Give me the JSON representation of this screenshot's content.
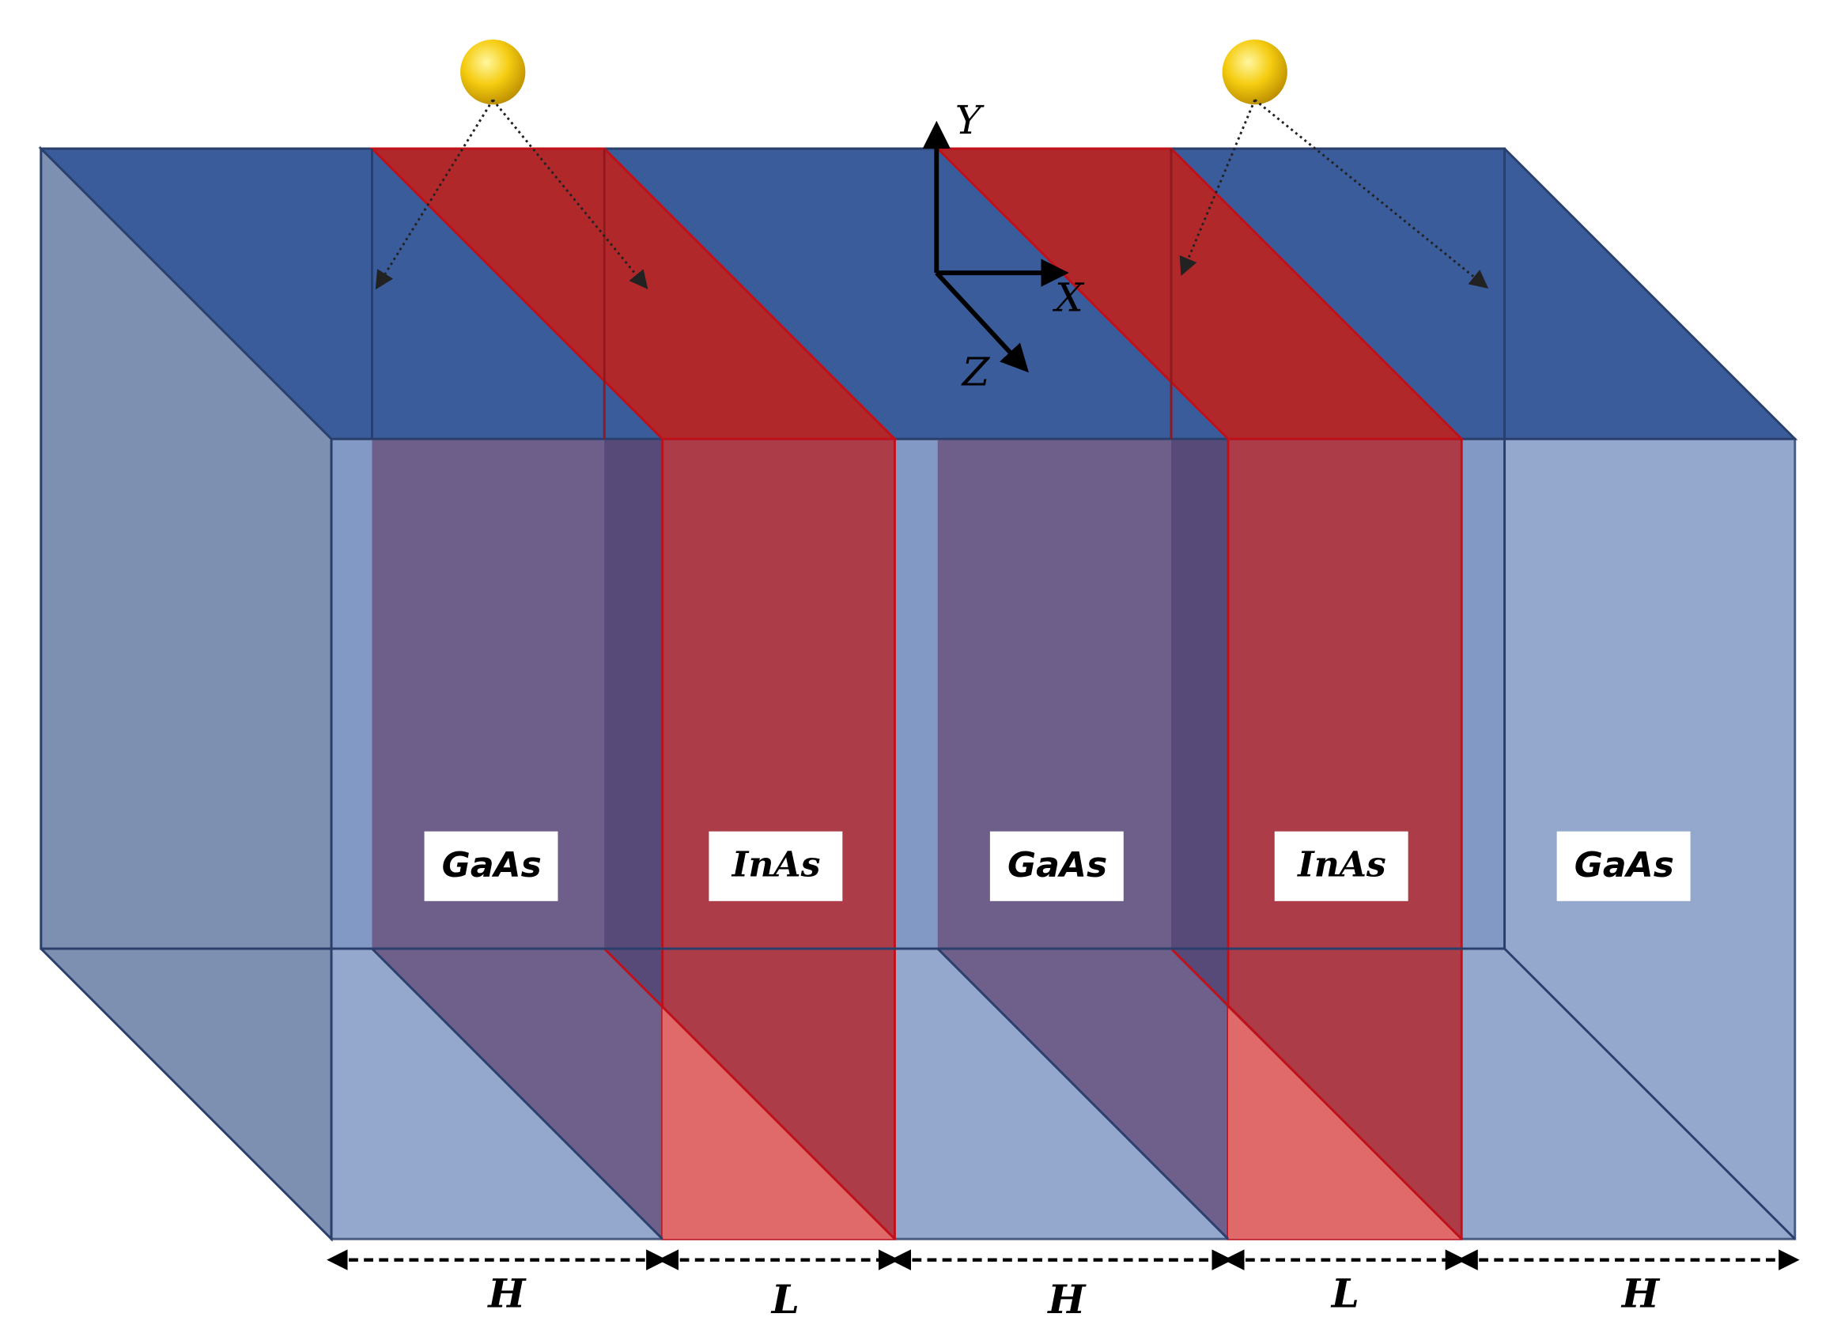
{
  "layers": [
    {
      "label": "GaAs",
      "dimension": "H"
    },
    {
      "label": "InAs",
      "dimension": "L"
    },
    {
      "label": "GaAs",
      "dimension": "H"
    },
    {
      "label": "InAs",
      "dimension": "L"
    },
    {
      "label": "GaAs",
      "dimension": "H"
    }
  ],
  "axes": {
    "y": "Y",
    "x": "X",
    "z": "Z"
  }
}
